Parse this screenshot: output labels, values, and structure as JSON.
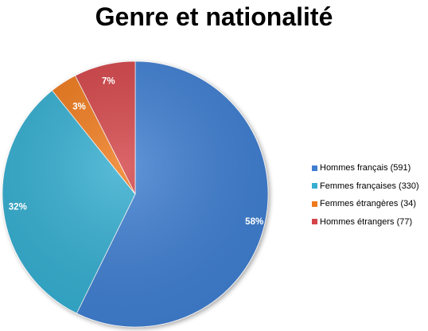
{
  "chart_data": {
    "type": "pie",
    "title": "Genre et nationalité",
    "legend_position": "right",
    "slices": [
      {
        "name": "Hommes français",
        "legend_label": "Hommes français (591)",
        "value": 591,
        "label": "58%",
        "color": "#3f7fd1"
      },
      {
        "name": "Femmes françaises",
        "legend_label": "Femmes françaises (330)",
        "value": 330,
        "label": "32%",
        "color": "#36aed0"
      },
      {
        "name": "Femmes étrangères",
        "legend_label": "Femmes étrangères  (34)",
        "value": 34,
        "label": "3%",
        "color": "#ee7a1c"
      },
      {
        "name": "Hommes étrangers",
        "legend_label": "Hommes étrangers (77)",
        "value": 77,
        "label": "7%",
        "color": "#d3454a"
      }
    ]
  }
}
